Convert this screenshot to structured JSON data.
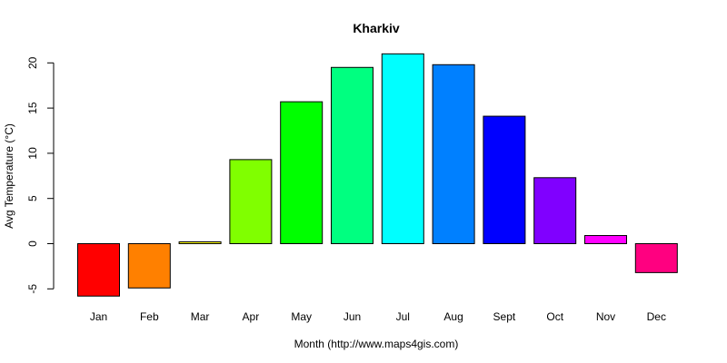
{
  "chart_data": {
    "type": "bar",
    "title": "Kharkiv",
    "xlabel": "Month (http://www.maps4gis.com)",
    "ylabel": "Avg Temperature (°C)",
    "ylim": [
      -5,
      20
    ],
    "yticks": [
      -5,
      0,
      5,
      10,
      15,
      20
    ],
    "categories": [
      "Jan",
      "Feb",
      "Mar",
      "Apr",
      "May",
      "Jun",
      "Jul",
      "Aug",
      "Sept",
      "Oct",
      "Nov",
      "Dec"
    ],
    "values": [
      -5.8,
      -4.9,
      0.2,
      9.3,
      15.7,
      19.5,
      21.0,
      19.8,
      14.1,
      7.3,
      0.9,
      -3.2
    ],
    "colors": [
      "#FF0000",
      "#FF8000",
      "#FFFF00",
      "#80FF00",
      "#00FF00",
      "#00FF80",
      "#00FFFF",
      "#0080FF",
      "#0000FF",
      "#8000FF",
      "#FF00FF",
      "#FF0080"
    ],
    "grid": false,
    "legend": "none"
  }
}
